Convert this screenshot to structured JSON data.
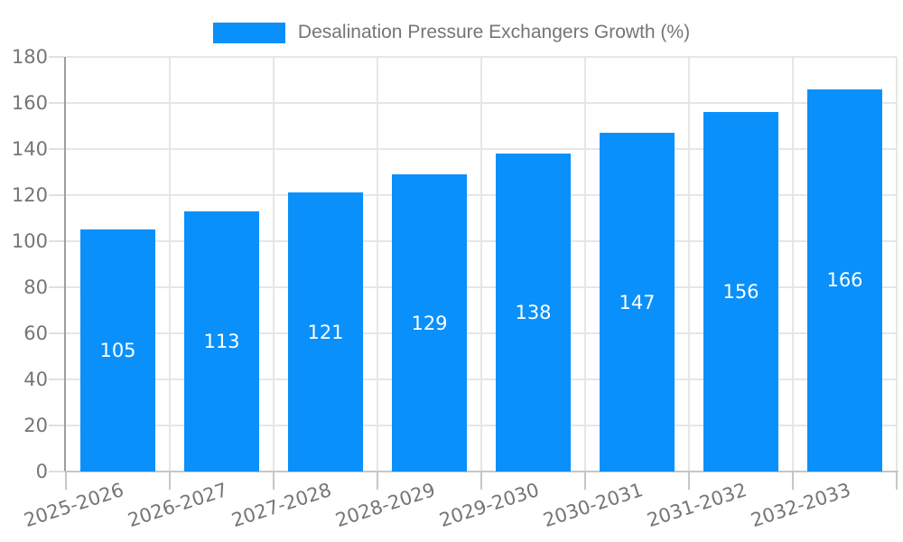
{
  "chart_data": {
    "type": "bar",
    "title": "Desalination Pressure Exchangers Growth (%)",
    "categories": [
      "2025-2026",
      "2026-2027",
      "2027-2028",
      "2028-2029",
      "2029-2030",
      "2030-2031",
      "2031-2032",
      "2032-2033"
    ],
    "values": [
      105,
      113,
      121,
      129,
      138,
      147,
      156,
      166
    ],
    "xlabel": "",
    "ylabel": "",
    "ylim": [
      0,
      180
    ],
    "ytick_step": 20,
    "ytick_labels": [
      "0",
      "20",
      "40",
      "60",
      "80",
      "100",
      "120",
      "140",
      "160",
      "180"
    ],
    "grid": "on",
    "legend_position": "top-center",
    "bar_label_position": "inside-center",
    "x_label_rotation_deg": -18
  },
  "colors": {
    "bar": "#0a90fa",
    "bar_value_label": "#ffffff",
    "axis_text": "#757575",
    "grid_line": "#e6e6e6",
    "y_axis_line": "#9e9e9e",
    "x_axis_line": "#c6c6c6",
    "x_tick": "#c6c6c6",
    "y_tick": "#e0e0e0",
    "background": "#ffffff"
  }
}
